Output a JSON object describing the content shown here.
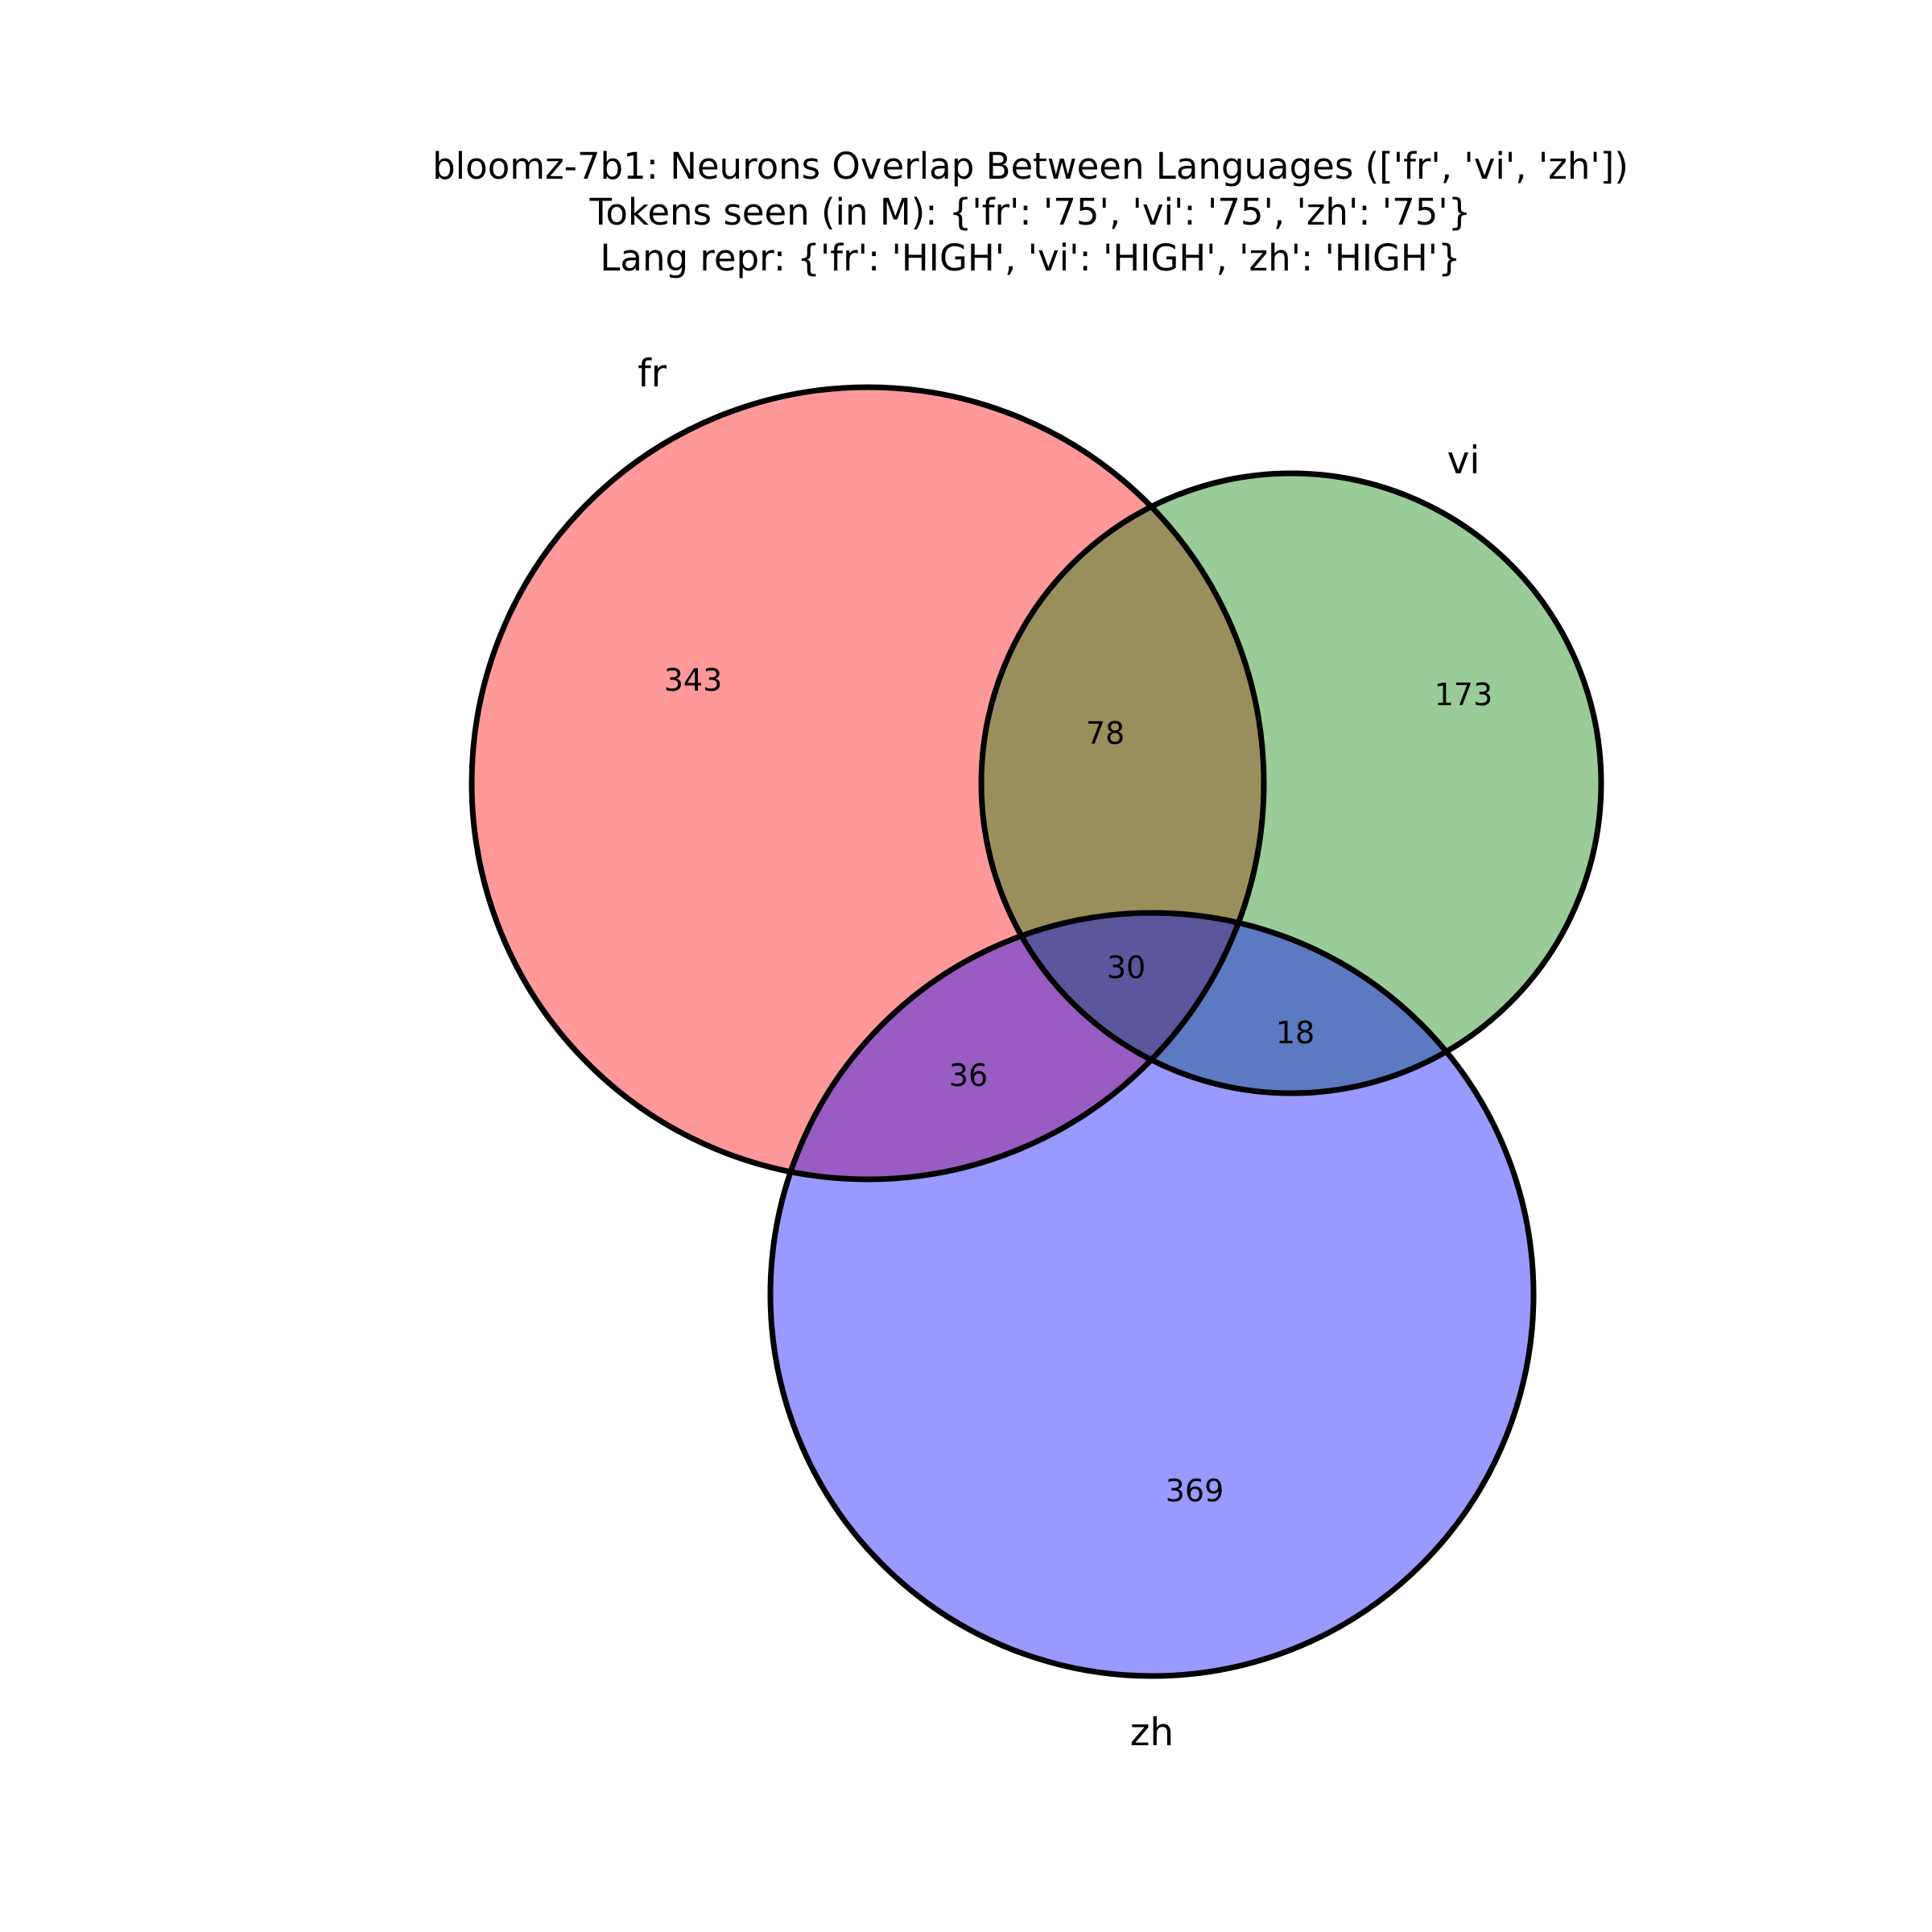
{
  "title": {
    "line1": "bloomz-7b1: Neurons Overlap Between Languages (['fr', 'vi', 'zh'])",
    "line2": "Tokens seen (in M): {'fr': '75', 'vi': '75', 'zh': '75'}",
    "line3": "Lang repr: {'fr': 'HIGH', 'vi': 'HIGH', 'zh': 'HIGH'}"
  },
  "sets": [
    {
      "id": "fr",
      "label": "fr",
      "color": "#ff0000"
    },
    {
      "id": "vi",
      "label": "vi",
      "color": "#008000"
    },
    {
      "id": "zh",
      "label": "zh",
      "color": "#0000ff"
    }
  ],
  "regions": {
    "fr_only": "343",
    "vi_only": "173",
    "zh_only": "369",
    "fr_vi": "78",
    "fr_zh": "36",
    "vi_zh": "18",
    "fr_vi_zh": "30"
  },
  "fill_opacity": 0.4,
  "outline_color": "#000000"
}
